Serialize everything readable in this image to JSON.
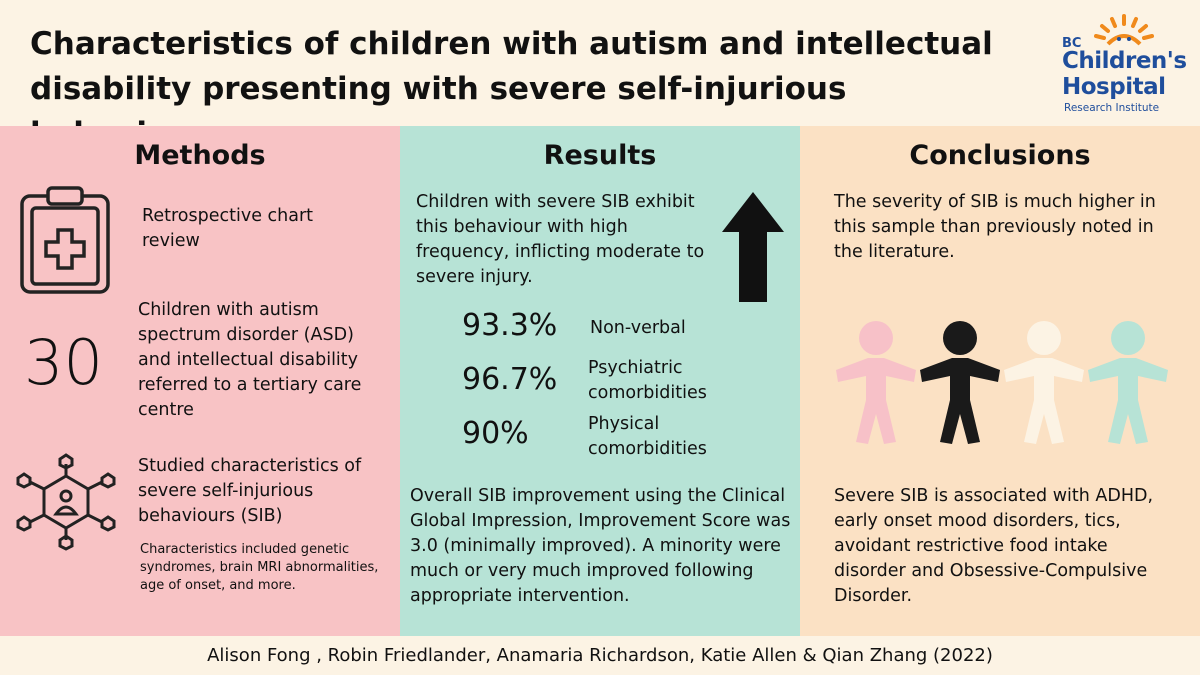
{
  "title": "Characteristics of children with autism and intellectual disability presenting with severe self-injurious behaviours",
  "logo": {
    "bc": "BC",
    "line1": "Children's",
    "line2": "Hospital",
    "line3": "Research Institute"
  },
  "methods": {
    "heading": "Methods",
    "item1": "Retrospective chart review",
    "number": "30",
    "item2": "Children with autism spectrum disorder (ASD) and intellectual disability referred to a tertiary care centre",
    "item3": "Studied characteristics of severe self-injurious behaviours (SIB)",
    "item3_note": "Characteristics included genetic syndromes, brain MRI abnormalities, age of onset, and more."
  },
  "results": {
    "heading": "Results",
    "intro": "Children with severe SIB exhibit this behaviour with high frequency, inflicting moderate to severe injury.",
    "stats": [
      {
        "value": "93.3%",
        "label": "Non-verbal"
      },
      {
        "value": "96.7%",
        "label": "Psychiatric comorbidities"
      },
      {
        "value": "90%",
        "label": "Physical comorbidities"
      }
    ],
    "summary": "Overall SIB improvement using the Clinical Global Impression, Improvement Score was 3.0 (minimally improved). A minority were much or very much improved following appropriate intervention."
  },
  "conclusions": {
    "heading": "Conclusions",
    "text1": "The severity of SIB is much higher in this sample than previously noted in the literature.",
    "text2": "Severe SIB is associated with ADHD, early onset mood disorders, tics, avoidant restrictive food intake disorder and Obsessive-Compulsive Disorder.",
    "figure_colors": [
      "#f7c1c8",
      "#1a1a1a",
      "#fcf3e4",
      "#b7e3d6"
    ]
  },
  "footer": "Alison Fong , Robin Friedlander, Anamaria Richardson, Katie Allen & Qian Zhang (2022)"
}
